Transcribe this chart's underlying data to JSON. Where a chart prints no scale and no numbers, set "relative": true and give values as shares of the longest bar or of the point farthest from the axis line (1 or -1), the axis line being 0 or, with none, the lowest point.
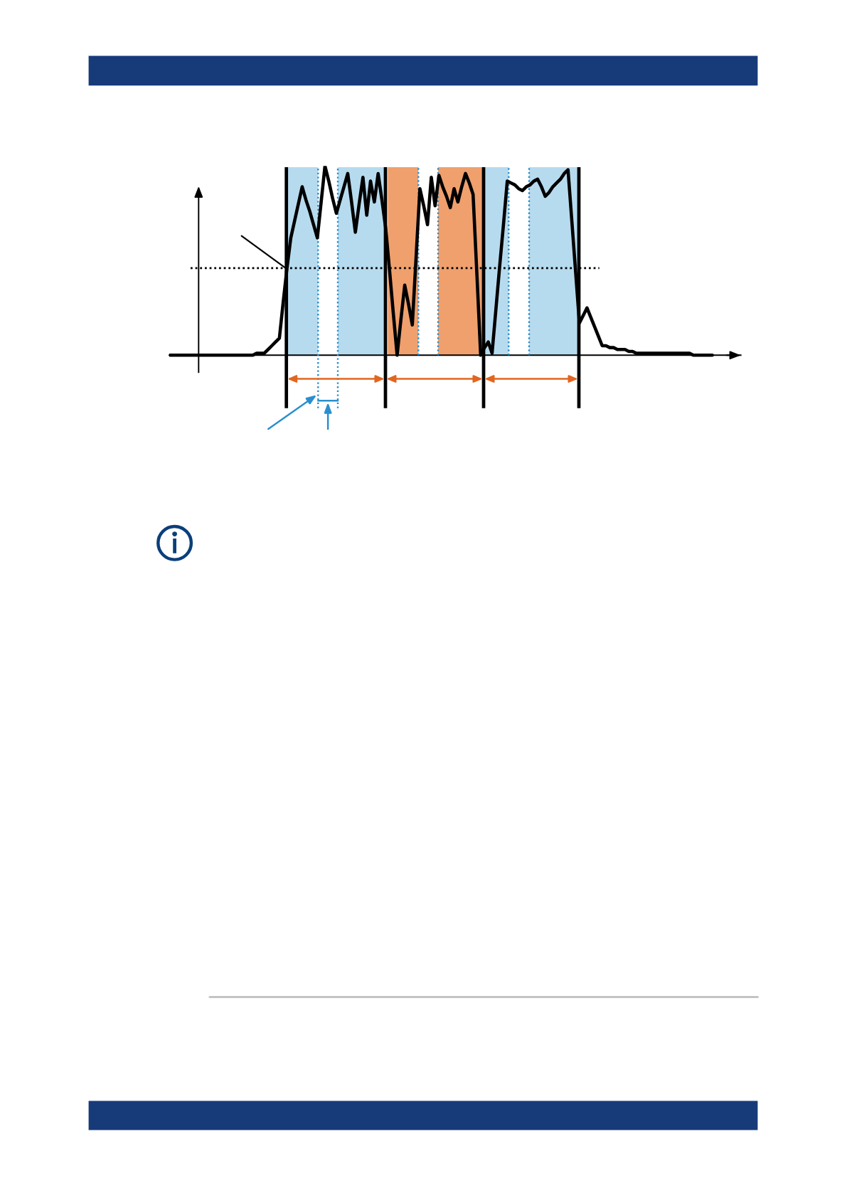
{
  "chart_data": {
    "type": "line",
    "relative": true,
    "categories": [
      null,
      null,
      null,
      null,
      null,
      null,
      null,
      null,
      null,
      null,
      null,
      null,
      null,
      null,
      null,
      null,
      null,
      null,
      null,
      null,
      null,
      null,
      null,
      null,
      null,
      null,
      null,
      null,
      null,
      null,
      null,
      null,
      null,
      null,
      null,
      null,
      null,
      null,
      null,
      null,
      null,
      null,
      null,
      null,
      null,
      null,
      null,
      null,
      null,
      null,
      null,
      null,
      null,
      null,
      null,
      null,
      null,
      null,
      null,
      null,
      null,
      null,
      null,
      null,
      null,
      null,
      null,
      null,
      null,
      null,
      null,
      null,
      null,
      null,
      null,
      null,
      null,
      null,
      null,
      null,
      null,
      null,
      null,
      null,
      null,
      null,
      null,
      null,
      null,
      null,
      null,
      null,
      null,
      null,
      null,
      null,
      null,
      null,
      null,
      null,
      null,
      null,
      null,
      null,
      null,
      null,
      null,
      null,
      null,
      null,
      null,
      null,
      null,
      null,
      null,
      null,
      null,
      null,
      null,
      null,
      null,
      null,
      null,
      null,
      null,
      null,
      null,
      null,
      null,
      null,
      null,
      null,
      null,
      null,
      null,
      null,
      null,
      null,
      null,
      null,
      null,
      null,
      null,
      null
    ],
    "series": [
      {
        "color": "#000000",
        "values": [
          0,
          0,
          0,
          0,
          0,
          0,
          0,
          0,
          0,
          0,
          0,
          0,
          0,
          0,
          0,
          0,
          0,
          0,
          0,
          0,
          0,
          0,
          0,
          0.01,
          0.01,
          0.01,
          0.03,
          0.05,
          0.07,
          0.09,
          0.28,
          0.46,
          0.62,
          0.71,
          0.8,
          0.89,
          0.82,
          0.76,
          0.69,
          0.62,
          0.81,
          1.0,
          0.92,
          0.83,
          0.75,
          0.82,
          0.89,
          0.96,
          0.81,
          0.65,
          0.8,
          0.94,
          0.74,
          0.92,
          0.81,
          0.96,
          0.82,
          0.67,
          0.45,
          0.22,
          0,
          0.19,
          0.37,
          0.27,
          0.16,
          0.52,
          0.88,
          0.79,
          0.69,
          0.94,
          0.79,
          0.95,
          0.89,
          0.84,
          0.78,
          0.88,
          0.81,
          0.89,
          0.96,
          0.91,
          0.85,
          0.43,
          0,
          0.04,
          0.07,
          0.01,
          0.24,
          0.47,
          0.69,
          0.92,
          0.91,
          0.9,
          0.88,
          0.87,
          0.89,
          0.9,
          0.92,
          0.93,
          0.89,
          0.84,
          0.86,
          0.89,
          0.91,
          0.93,
          0.96,
          0.98,
          0.71,
          0.44,
          0.17,
          0.21,
          0.25,
          0.2,
          0.15,
          0.1,
          0.05,
          0.05,
          0.04,
          0.04,
          0.03,
          0.03,
          0.03,
          0.02,
          0.02,
          0.01,
          0.01,
          0.01,
          0.01,
          0.01,
          0.01,
          0.01,
          0.01,
          0.01,
          0.01,
          0.01,
          0.01,
          0.01,
          0.01,
          0.01,
          0,
          0,
          0,
          0,
          0,
          0
        ]
      }
    ],
    "ref_lines": [
      {
        "axis": "y",
        "value": 0.46,
        "color": "#000000",
        "line_style": "dotted"
      }
    ]
  }
}
